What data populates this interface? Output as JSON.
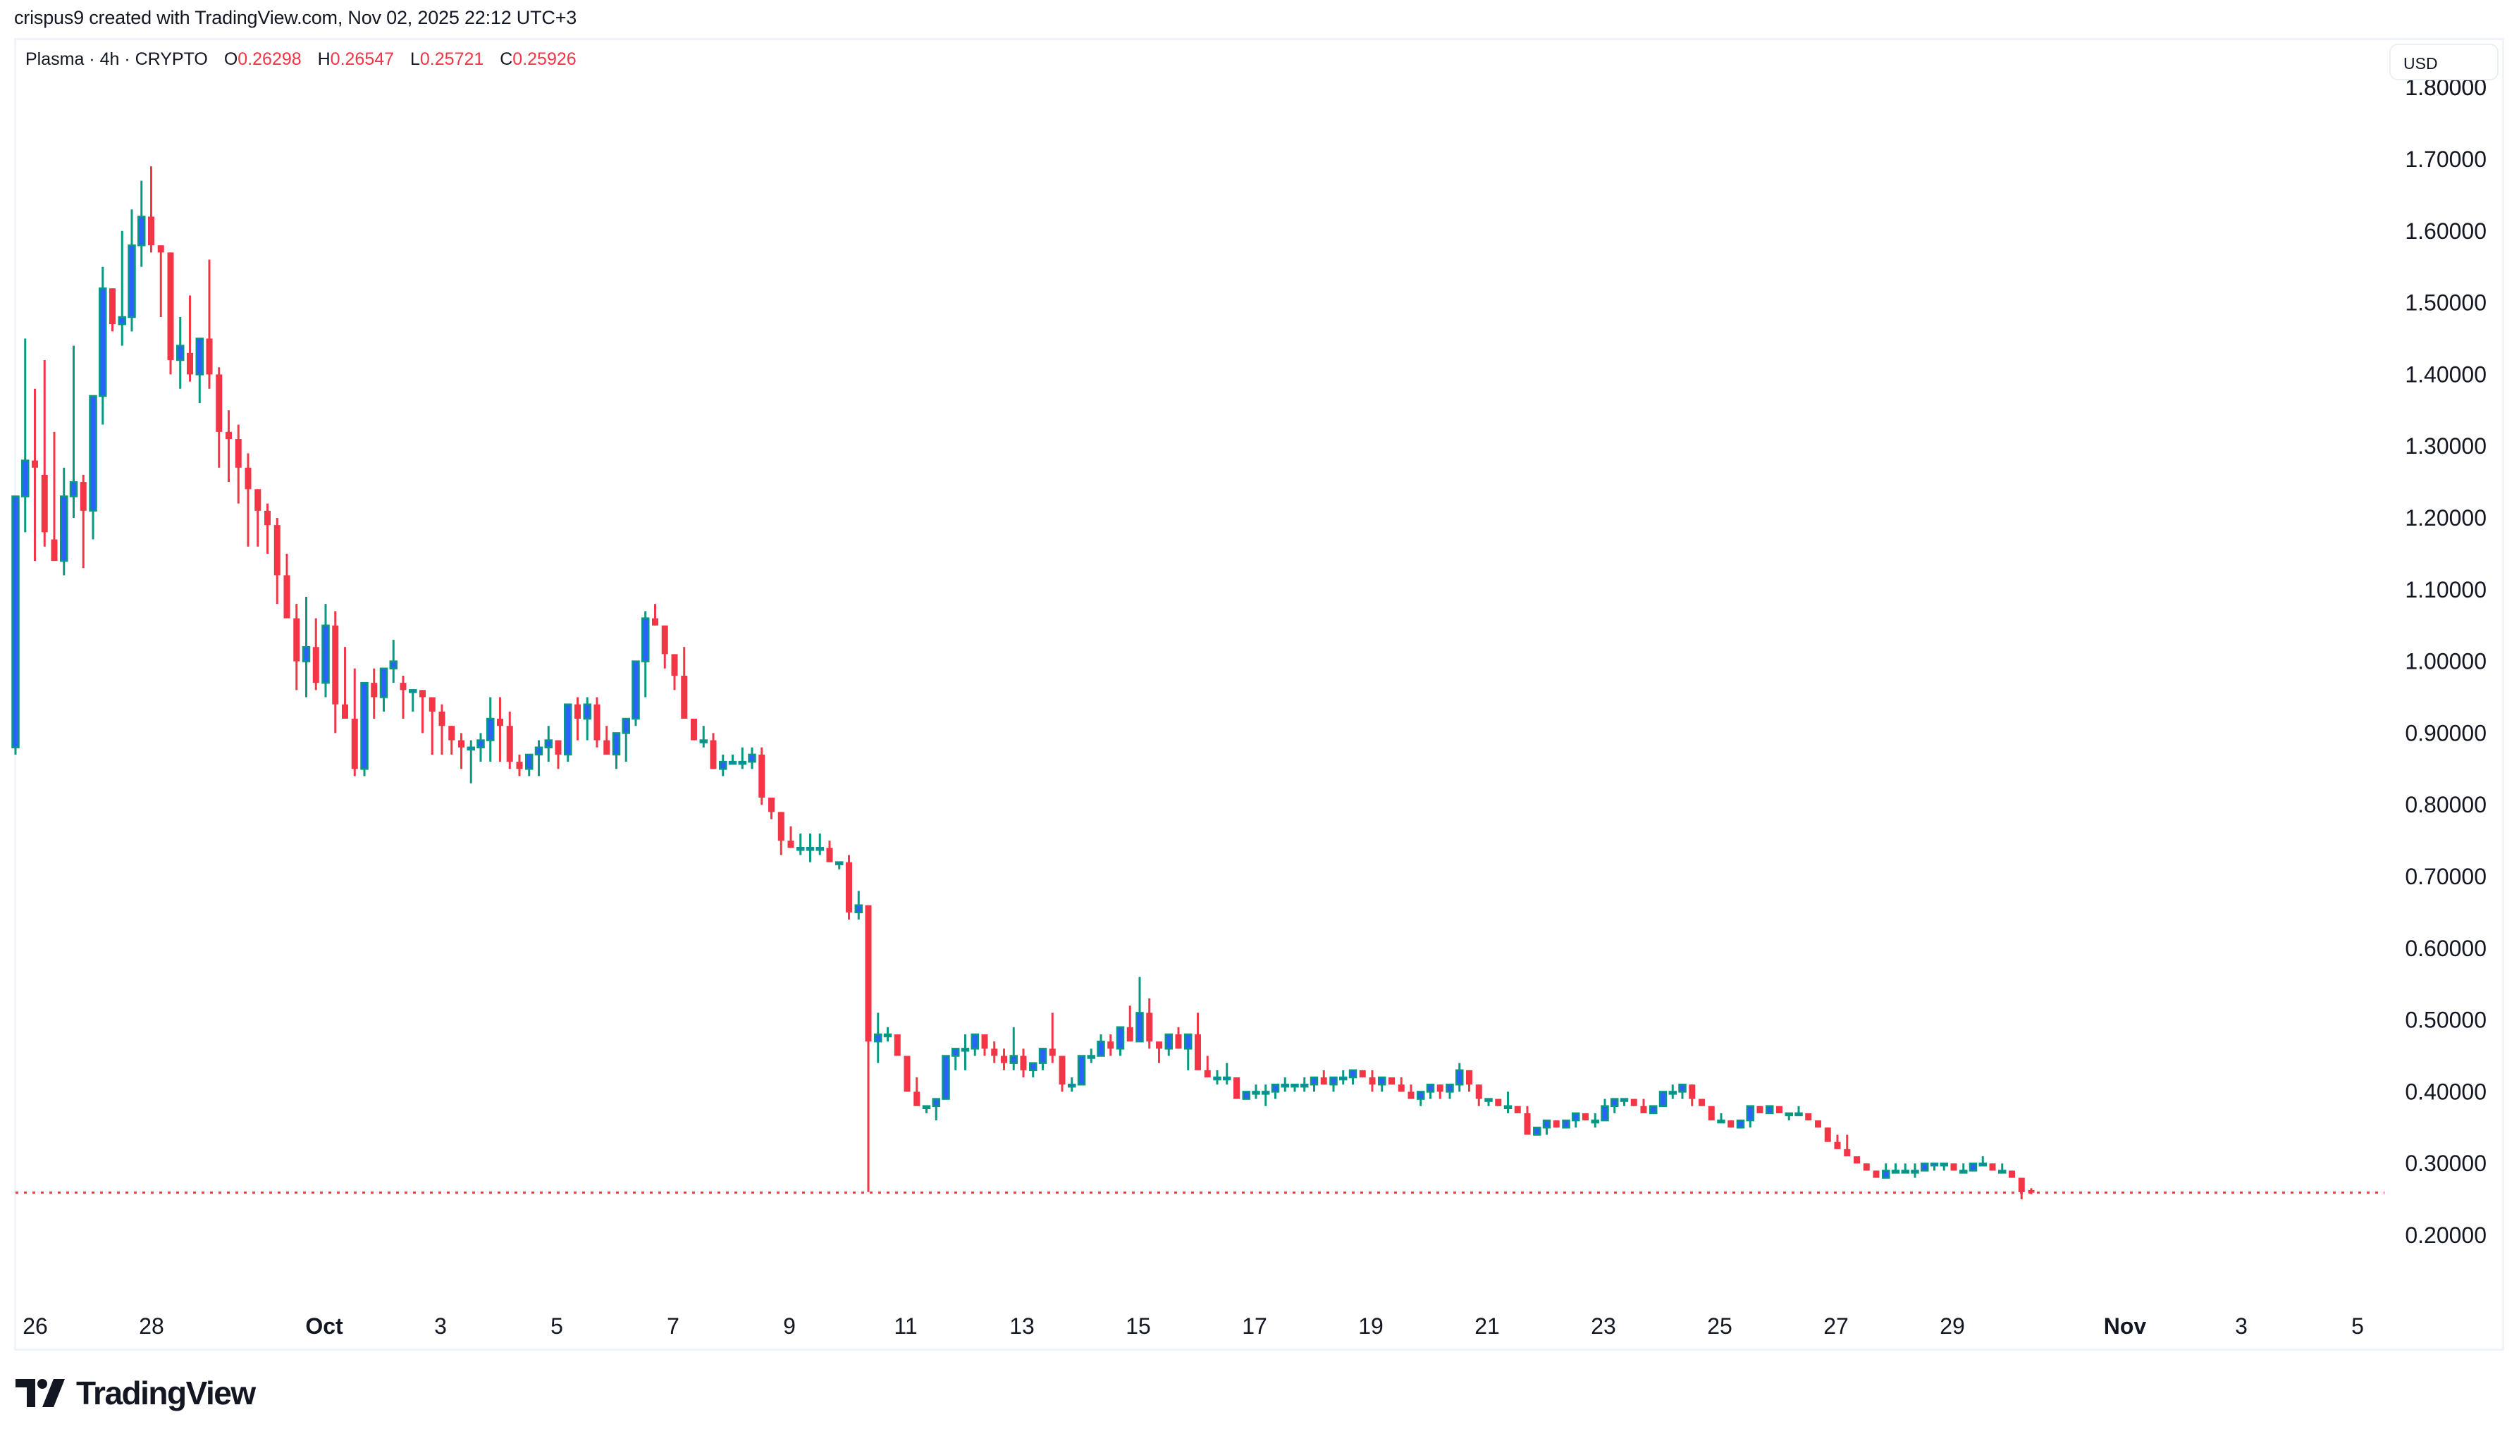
{
  "header": {
    "credit": "crispus9 created with TradingView.com, Nov 02, 2025 22:12 UTC+3"
  },
  "legend": {
    "symbol": "Plasma · 4h · CRYPTO",
    "open_label": "O",
    "open": "0.26298",
    "high_label": "H",
    "high": "0.26547",
    "low_label": "L",
    "low": "0.25721",
    "close_label": "C",
    "close": "0.25926"
  },
  "price_axis": {
    "currency": "USD",
    "ticks": [
      "1.80000",
      "1.70000",
      "1.60000",
      "1.50000",
      "1.40000",
      "1.30000",
      "1.20000",
      "1.10000",
      "1.00000",
      "0.90000",
      "0.80000",
      "0.70000",
      "0.60000",
      "0.50000",
      "0.40000",
      "0.30000",
      "0.20000"
    ]
  },
  "time_axis": {
    "ticks": [
      {
        "label": "26",
        "bold": false
      },
      {
        "label": "28",
        "bold": false
      },
      {
        "label": "Oct",
        "bold": true
      },
      {
        "label": "3",
        "bold": false
      },
      {
        "label": "5",
        "bold": false
      },
      {
        "label": "7",
        "bold": false
      },
      {
        "label": "9",
        "bold": false
      },
      {
        "label": "11",
        "bold": false
      },
      {
        "label": "13",
        "bold": false
      },
      {
        "label": "15",
        "bold": false
      },
      {
        "label": "17",
        "bold": false
      },
      {
        "label": "19",
        "bold": false
      },
      {
        "label": "21",
        "bold": false
      },
      {
        "label": "23",
        "bold": false
      },
      {
        "label": "25",
        "bold": false
      },
      {
        "label": "27",
        "bold": false
      },
      {
        "label": "29",
        "bold": false
      },
      {
        "label": "Nov",
        "bold": true
      },
      {
        "label": "3",
        "bold": false
      },
      {
        "label": "5",
        "bold": false
      }
    ]
  },
  "colors": {
    "up_body": "#2962FF",
    "up_border": "#089981",
    "down": "#F23645",
    "price_line": "#F23645",
    "text": "#131722",
    "frame": "#f0f3fa"
  },
  "footer": {
    "brand": "TradingView"
  },
  "chart_data": {
    "type": "candlestick",
    "title": "Plasma · 4h · CRYPTO",
    "ylabel": "USD",
    "ylim": [
      0.14,
      1.82
    ],
    "grid": false,
    "last_price": 0.25926,
    "x_ticks": [
      "26",
      "28",
      "Oct",
      "3",
      "5",
      "7",
      "9",
      "11",
      "13",
      "15",
      "17",
      "19",
      "21",
      "23",
      "25",
      "27",
      "29",
      "Nov",
      "3",
      "5"
    ],
    "y_ticks": [
      1.8,
      1.7,
      1.6,
      1.5,
      1.4,
      1.3,
      1.2,
      1.1,
      1.0,
      0.9,
      0.8,
      0.7,
      0.6,
      0.5,
      0.4,
      0.3,
      0.2
    ],
    "ohlc": [
      [
        0.88,
        1.23,
        0.87,
        1.23
      ],
      [
        1.23,
        1.45,
        1.18,
        1.28
      ],
      [
        1.28,
        1.38,
        1.14,
        1.27
      ],
      [
        1.26,
        1.42,
        1.16,
        1.18
      ],
      [
        1.17,
        1.32,
        1.14,
        1.14
      ],
      [
        1.14,
        1.27,
        1.12,
        1.23
      ],
      [
        1.23,
        1.44,
        1.2,
        1.25
      ],
      [
        1.25,
        1.26,
        1.13,
        1.21
      ],
      [
        1.21,
        1.36,
        1.17,
        1.37
      ],
      [
        1.37,
        1.55,
        1.33,
        1.52
      ],
      [
        1.52,
        1.46,
        1.46,
        1.47
      ],
      [
        1.47,
        1.6,
        1.44,
        1.48
      ],
      [
        1.48,
        1.63,
        1.46,
        1.58
      ],
      [
        1.58,
        1.67,
        1.55,
        1.62
      ],
      [
        1.62,
        1.69,
        1.57,
        1.58
      ],
      [
        1.58,
        1.58,
        1.48,
        1.57
      ],
      [
        1.57,
        1.57,
        1.4,
        1.42
      ],
      [
        1.42,
        1.48,
        1.38,
        1.44
      ],
      [
        1.43,
        1.51,
        1.39,
        1.4
      ],
      [
        1.4,
        1.44,
        1.36,
        1.45
      ],
      [
        1.45,
        1.56,
        1.38,
        1.4
      ],
      [
        1.4,
        1.41,
        1.27,
        1.32
      ],
      [
        1.32,
        1.35,
        1.25,
        1.31
      ],
      [
        1.31,
        1.33,
        1.22,
        1.27
      ],
      [
        1.27,
        1.29,
        1.16,
        1.24
      ],
      [
        1.24,
        1.24,
        1.16,
        1.21
      ],
      [
        1.21,
        1.22,
        1.15,
        1.19
      ],
      [
        1.19,
        1.2,
        1.08,
        1.12
      ],
      [
        1.12,
        1.15,
        1.07,
        1.06
      ],
      [
        1.06,
        1.08,
        0.96,
        1.0
      ],
      [
        1.0,
        1.09,
        0.95,
        1.02
      ],
      [
        1.02,
        1.06,
        0.96,
        0.97
      ],
      [
        0.97,
        1.08,
        0.95,
        1.05
      ],
      [
        1.05,
        1.07,
        0.9,
        0.94
      ],
      [
        0.94,
        1.02,
        0.93,
        0.92
      ],
      [
        0.92,
        0.99,
        0.84,
        0.85
      ],
      [
        0.85,
        0.97,
        0.84,
        0.97
      ],
      [
        0.97,
        0.99,
        0.92,
        0.95
      ],
      [
        0.95,
        0.96,
        0.93,
        0.99
      ],
      [
        0.99,
        1.03,
        0.97,
        1.0
      ],
      [
        0.97,
        0.98,
        0.92,
        0.96
      ],
      [
        0.96,
        0.94,
        0.93,
        0.96
      ],
      [
        0.96,
        0.96,
        0.9,
        0.95
      ],
      [
        0.95,
        0.95,
        0.87,
        0.93
      ],
      [
        0.93,
        0.94,
        0.87,
        0.91
      ],
      [
        0.91,
        0.91,
        0.87,
        0.89
      ],
      [
        0.89,
        0.9,
        0.85,
        0.88
      ],
      [
        0.88,
        0.89,
        0.83,
        0.88
      ],
      [
        0.88,
        0.9,
        0.86,
        0.89
      ],
      [
        0.89,
        0.95,
        0.86,
        0.92
      ],
      [
        0.92,
        0.95,
        0.86,
        0.91
      ],
      [
        0.91,
        0.93,
        0.85,
        0.86
      ],
      [
        0.86,
        0.87,
        0.84,
        0.85
      ],
      [
        0.85,
        0.87,
        0.84,
        0.87
      ],
      [
        0.87,
        0.89,
        0.84,
        0.88
      ],
      [
        0.88,
        0.91,
        0.86,
        0.89
      ],
      [
        0.89,
        0.88,
        0.85,
        0.87
      ],
      [
        0.87,
        0.94,
        0.86,
        0.94
      ],
      [
        0.94,
        0.95,
        0.89,
        0.92
      ],
      [
        0.92,
        0.95,
        0.89,
        0.94
      ],
      [
        0.94,
        0.95,
        0.88,
        0.89
      ],
      [
        0.89,
        0.91,
        0.87,
        0.87
      ],
      [
        0.87,
        0.89,
        0.85,
        0.9
      ],
      [
        0.9,
        0.92,
        0.86,
        0.92
      ],
      [
        0.92,
        1.0,
        0.91,
        1.0
      ],
      [
        1.0,
        1.07,
        0.95,
        1.06
      ],
      [
        1.06,
        1.08,
        1.05,
        1.05
      ],
      [
        1.05,
        1.05,
        0.99,
        1.01
      ],
      [
        1.01,
        1.01,
        0.96,
        0.98
      ],
      [
        0.98,
        1.02,
        0.92,
        0.92
      ],
      [
        0.92,
        0.91,
        0.89,
        0.89
      ],
      [
        0.89,
        0.91,
        0.88,
        0.89
      ],
      [
        0.89,
        0.9,
        0.85,
        0.85
      ],
      [
        0.85,
        0.87,
        0.84,
        0.86
      ],
      [
        0.86,
        0.87,
        0.86,
        0.86
      ],
      [
        0.86,
        0.88,
        0.85,
        0.86
      ],
      [
        0.86,
        0.88,
        0.85,
        0.87
      ],
      [
        0.87,
        0.88,
        0.8,
        0.81
      ],
      [
        0.81,
        0.81,
        0.78,
        0.79
      ],
      [
        0.79,
        0.79,
        0.73,
        0.75
      ],
      [
        0.75,
        0.77,
        0.74,
        0.74
      ],
      [
        0.74,
        0.76,
        0.73,
        0.74
      ],
      [
        0.74,
        0.76,
        0.72,
        0.74
      ],
      [
        0.74,
        0.76,
        0.73,
        0.74
      ],
      [
        0.74,
        0.75,
        0.72,
        0.72
      ],
      [
        0.72,
        0.72,
        0.71,
        0.72
      ],
      [
        0.72,
        0.73,
        0.64,
        0.65
      ],
      [
        0.65,
        0.68,
        0.64,
        0.66
      ],
      [
        0.66,
        0.66,
        0.26,
        0.47
      ],
      [
        0.47,
        0.51,
        0.44,
        0.48
      ],
      [
        0.48,
        0.49,
        0.47,
        0.48
      ],
      [
        0.48,
        0.47,
        0.45,
        0.45
      ],
      [
        0.45,
        0.45,
        0.4,
        0.4
      ],
      [
        0.4,
        0.42,
        0.38,
        0.38
      ],
      [
        0.38,
        0.38,
        0.37,
        0.38
      ],
      [
        0.38,
        0.39,
        0.36,
        0.39
      ],
      [
        0.39,
        0.45,
        0.39,
        0.45
      ],
      [
        0.45,
        0.46,
        0.43,
        0.46
      ],
      [
        0.46,
        0.48,
        0.43,
        0.46
      ],
      [
        0.46,
        0.47,
        0.45,
        0.48
      ],
      [
        0.48,
        0.48,
        0.45,
        0.46
      ],
      [
        0.46,
        0.47,
        0.44,
        0.45
      ],
      [
        0.45,
        0.46,
        0.43,
        0.44
      ],
      [
        0.44,
        0.49,
        0.43,
        0.45
      ],
      [
        0.45,
        0.46,
        0.42,
        0.43
      ],
      [
        0.43,
        0.44,
        0.42,
        0.44
      ],
      [
        0.44,
        0.46,
        0.43,
        0.46
      ],
      [
        0.46,
        0.51,
        0.44,
        0.45
      ],
      [
        0.45,
        0.45,
        0.4,
        0.41
      ],
      [
        0.41,
        0.42,
        0.4,
        0.41
      ],
      [
        0.41,
        0.44,
        0.41,
        0.45
      ],
      [
        0.45,
        0.46,
        0.44,
        0.45
      ],
      [
        0.45,
        0.48,
        0.45,
        0.47
      ],
      [
        0.47,
        0.48,
        0.45,
        0.46
      ],
      [
        0.46,
        0.49,
        0.45,
        0.49
      ],
      [
        0.49,
        0.52,
        0.47,
        0.47
      ],
      [
        0.47,
        0.56,
        0.47,
        0.51
      ],
      [
        0.51,
        0.53,
        0.46,
        0.47
      ],
      [
        0.47,
        0.47,
        0.44,
        0.46
      ],
      [
        0.46,
        0.48,
        0.45,
        0.48
      ],
      [
        0.48,
        0.49,
        0.46,
        0.46
      ],
      [
        0.46,
        0.48,
        0.43,
        0.48
      ],
      [
        0.48,
        0.51,
        0.43,
        0.43
      ],
      [
        0.43,
        0.45,
        0.42,
        0.42
      ],
      [
        0.42,
        0.43,
        0.41,
        0.42
      ],
      [
        0.42,
        0.44,
        0.41,
        0.42
      ],
      [
        0.42,
        0.42,
        0.4,
        0.39
      ],
      [
        0.39,
        0.4,
        0.39,
        0.4
      ],
      [
        0.4,
        0.41,
        0.39,
        0.4
      ],
      [
        0.4,
        0.41,
        0.38,
        0.4
      ],
      [
        0.4,
        0.41,
        0.39,
        0.41
      ],
      [
        0.41,
        0.42,
        0.4,
        0.41
      ],
      [
        0.41,
        0.41,
        0.4,
        0.41
      ],
      [
        0.41,
        0.42,
        0.4,
        0.41
      ],
      [
        0.41,
        0.42,
        0.4,
        0.42
      ],
      [
        0.42,
        0.43,
        0.41,
        0.41
      ],
      [
        0.41,
        0.42,
        0.4,
        0.42
      ],
      [
        0.42,
        0.43,
        0.41,
        0.42
      ],
      [
        0.42,
        0.43,
        0.41,
        0.43
      ],
      [
        0.43,
        0.43,
        0.42,
        0.42
      ],
      [
        0.42,
        0.43,
        0.4,
        0.41
      ],
      [
        0.41,
        0.42,
        0.4,
        0.42
      ],
      [
        0.42,
        0.42,
        0.41,
        0.41
      ],
      [
        0.41,
        0.42,
        0.4,
        0.4
      ],
      [
        0.4,
        0.41,
        0.39,
        0.39
      ],
      [
        0.39,
        0.4,
        0.38,
        0.4
      ],
      [
        0.4,
        0.41,
        0.39,
        0.41
      ],
      [
        0.41,
        0.41,
        0.39,
        0.4
      ],
      [
        0.4,
        0.41,
        0.39,
        0.41
      ],
      [
        0.41,
        0.44,
        0.4,
        0.43
      ],
      [
        0.43,
        0.43,
        0.4,
        0.41
      ],
      [
        0.41,
        0.41,
        0.38,
        0.39
      ],
      [
        0.39,
        0.39,
        0.38,
        0.39
      ],
      [
        0.39,
        0.39,
        0.38,
        0.38
      ],
      [
        0.38,
        0.4,
        0.37,
        0.38
      ],
      [
        0.38,
        0.38,
        0.37,
        0.37
      ],
      [
        0.37,
        0.38,
        0.34,
        0.34
      ],
      [
        0.34,
        0.35,
        0.34,
        0.35
      ],
      [
        0.35,
        0.36,
        0.34,
        0.36
      ],
      [
        0.36,
        0.36,
        0.35,
        0.35
      ],
      [
        0.35,
        0.36,
        0.35,
        0.36
      ],
      [
        0.36,
        0.37,
        0.35,
        0.37
      ],
      [
        0.37,
        0.37,
        0.36,
        0.36
      ],
      [
        0.36,
        0.37,
        0.35,
        0.36
      ],
      [
        0.36,
        0.39,
        0.36,
        0.38
      ],
      [
        0.38,
        0.39,
        0.37,
        0.39
      ],
      [
        0.39,
        0.39,
        0.38,
        0.39
      ],
      [
        0.39,
        0.39,
        0.38,
        0.38
      ],
      [
        0.38,
        0.39,
        0.37,
        0.37
      ],
      [
        0.37,
        0.38,
        0.37,
        0.38
      ],
      [
        0.38,
        0.4,
        0.38,
        0.4
      ],
      [
        0.4,
        0.41,
        0.39,
        0.4
      ],
      [
        0.4,
        0.41,
        0.39,
        0.41
      ],
      [
        0.41,
        0.4,
        0.38,
        0.39
      ],
      [
        0.39,
        0.39,
        0.38,
        0.38
      ],
      [
        0.38,
        0.38,
        0.36,
        0.36
      ],
      [
        0.36,
        0.37,
        0.36,
        0.36
      ],
      [
        0.36,
        0.36,
        0.35,
        0.35
      ],
      [
        0.35,
        0.36,
        0.35,
        0.36
      ],
      [
        0.36,
        0.37,
        0.35,
        0.38
      ],
      [
        0.38,
        0.38,
        0.37,
        0.37
      ],
      [
        0.37,
        0.38,
        0.37,
        0.38
      ],
      [
        0.38,
        0.38,
        0.37,
        0.37
      ],
      [
        0.37,
        0.37,
        0.36,
        0.37
      ],
      [
        0.37,
        0.38,
        0.37,
        0.37
      ],
      [
        0.37,
        0.37,
        0.36,
        0.36
      ],
      [
        0.36,
        0.36,
        0.35,
        0.35
      ],
      [
        0.35,
        0.35,
        0.34,
        0.33
      ],
      [
        0.33,
        0.34,
        0.32,
        0.32
      ],
      [
        0.32,
        0.34,
        0.31,
        0.31
      ],
      [
        0.31,
        0.31,
        0.3,
        0.3
      ],
      [
        0.3,
        0.3,
        0.29,
        0.29
      ],
      [
        0.29,
        0.29,
        0.28,
        0.28
      ],
      [
        0.28,
        0.3,
        0.28,
        0.29
      ],
      [
        0.29,
        0.3,
        0.29,
        0.29
      ],
      [
        0.29,
        0.3,
        0.29,
        0.29
      ],
      [
        0.29,
        0.3,
        0.28,
        0.29
      ],
      [
        0.29,
        0.3,
        0.29,
        0.3
      ],
      [
        0.3,
        0.3,
        0.29,
        0.3
      ],
      [
        0.3,
        0.3,
        0.29,
        0.3
      ],
      [
        0.3,
        0.3,
        0.29,
        0.29
      ],
      [
        0.29,
        0.3,
        0.29,
        0.29
      ],
      [
        0.29,
        0.3,
        0.29,
        0.3
      ],
      [
        0.3,
        0.31,
        0.3,
        0.3
      ],
      [
        0.3,
        0.3,
        0.29,
        0.29
      ],
      [
        0.29,
        0.3,
        0.29,
        0.29
      ],
      [
        0.29,
        0.29,
        0.28,
        0.28
      ],
      [
        0.28,
        0.28,
        0.25,
        0.26
      ],
      [
        0.26298,
        0.26547,
        0.25721,
        0.25926
      ]
    ]
  }
}
